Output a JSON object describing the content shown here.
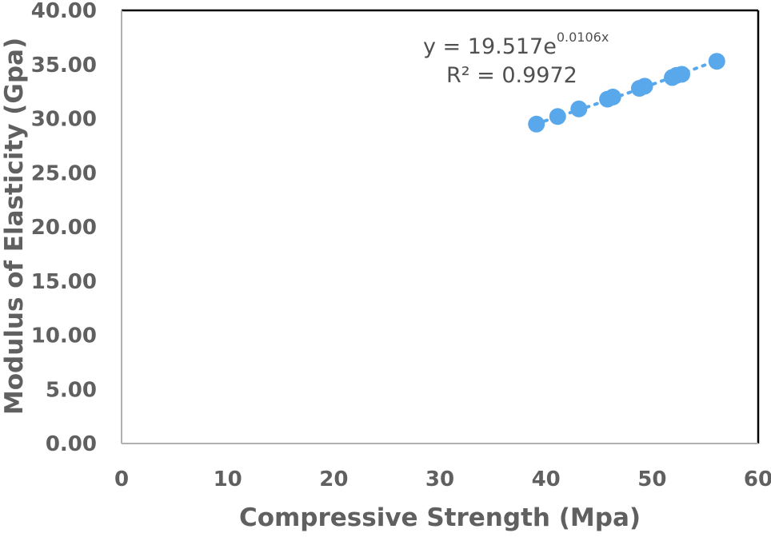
{
  "chart_data": {
    "type": "scatter",
    "xlabel": "Compressive Strength (Mpa)",
    "ylabel": "Modulus of Elasticity (Gpa)",
    "xlim": [
      0,
      60
    ],
    "ylim": [
      0,
      40
    ],
    "xticks": [
      0,
      10,
      20,
      30,
      40,
      50,
      60
    ],
    "xtick_labels": [
      "0",
      "10",
      "20",
      "30",
      "40",
      "50",
      "60"
    ],
    "yticks": [
      0,
      5,
      10,
      15,
      20,
      25,
      30,
      35,
      40
    ],
    "ytick_labels": [
      "0.00",
      "5.00",
      "10.00",
      "15.00",
      "20.00",
      "25.00",
      "30.00",
      "35.00",
      "40.00"
    ],
    "grid": false,
    "series": [
      {
        "x": [
          39.1,
          41.1,
          43.1,
          45.8,
          46.3,
          48.8,
          49.3,
          51.9,
          52.3,
          52.8,
          56.1
        ],
        "y": [
          29.5,
          30.2,
          30.9,
          31.8,
          32.0,
          32.8,
          33.0,
          33.8,
          34.0,
          34.1,
          35.3
        ],
        "color": "#5aa8ec"
      }
    ],
    "trendline": {
      "type": "exponential",
      "a": 19.517,
      "b": 0.0106,
      "x_range": [
        39.1,
        56.1
      ],
      "color": "#5aa8ec"
    },
    "annotations": {
      "equation_base": "y = 19.517e",
      "equation_exp": "0.0106x",
      "r_squared": "R² = 0.9972"
    }
  }
}
